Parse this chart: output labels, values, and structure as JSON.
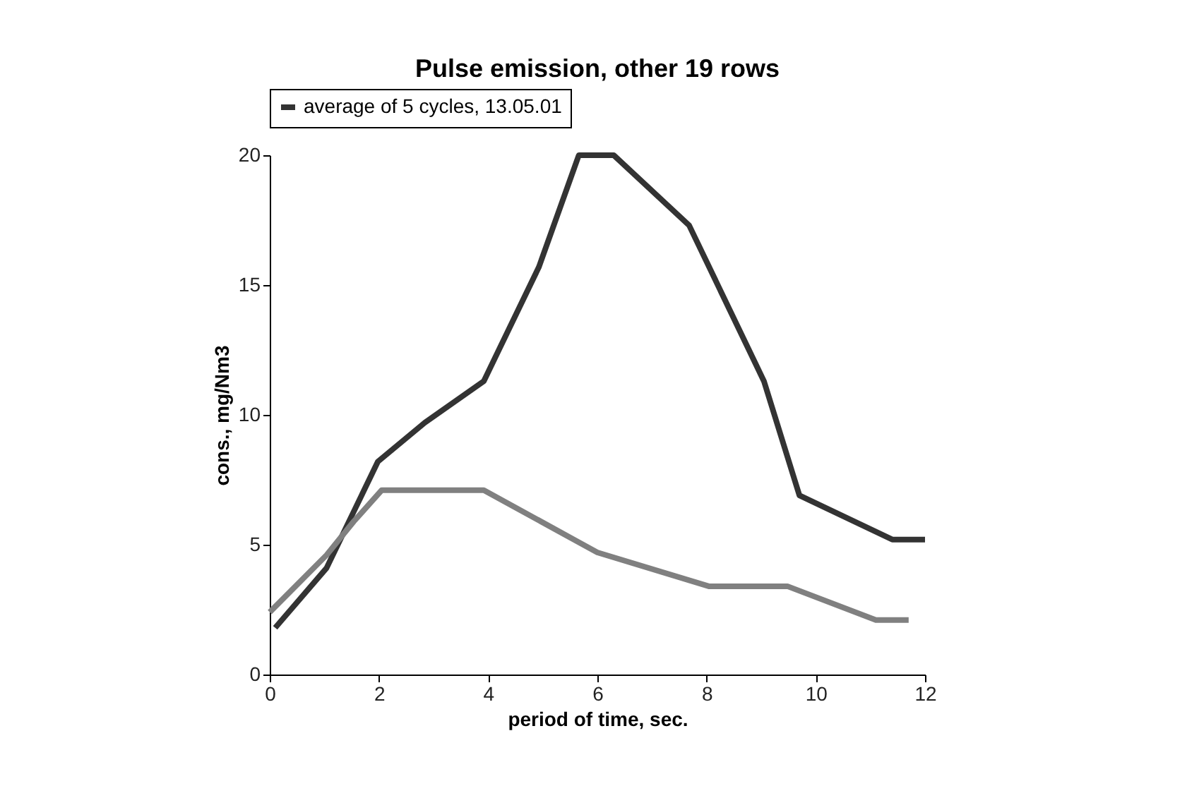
{
  "chart_data": {
    "type": "line",
    "title": "Pulse emission, other 19 rows",
    "xlabel": "period of time, sec.",
    "ylabel": "cons., mg/Nm3",
    "series": [
      {
        "name": "average of 5 cycles, 13.05.01",
        "color": "#333333",
        "x": [
          0.1,
          1.04,
          1.98,
          2.84,
          3.92,
          4.93,
          5.66,
          6.3,
          7.68,
          9.05,
          9.7,
          11.4,
          12
        ],
        "values": [
          1.8,
          4.1,
          8.2,
          9.7,
          11.3,
          15.7,
          20,
          20,
          17.3,
          11.3,
          6.9,
          5.2,
          5.2
        ]
      },
      {
        "color": "#808080",
        "x": [
          0,
          1.04,
          1.54,
          2.05,
          3.92,
          6.0,
          8.04,
          9.48,
          11.1,
          11.7
        ],
        "values": [
          2.4,
          4.6,
          5.9,
          7.1,
          7.1,
          4.7,
          3.4,
          3.4,
          2.1,
          2.1
        ]
      }
    ],
    "xlim": [
      0,
      12
    ],
    "xticks": [
      0,
      2,
      4,
      6,
      8,
      10,
      12
    ],
    "ylim": [
      0,
      20
    ],
    "yticks": [
      0,
      5,
      10,
      15,
      20
    ],
    "grid": false,
    "legend": "top",
    "marker": "none",
    "line_style": "solid"
  }
}
